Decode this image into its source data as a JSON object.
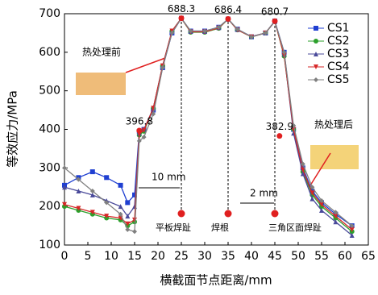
{
  "chart_data": {
    "type": "line",
    "xlabel": "横截面节点距离/mm",
    "ylabel": "等效应力/MPa",
    "xlim": [
      0,
      65
    ],
    "xticks": [
      0,
      5,
      10,
      15,
      20,
      25,
      30,
      35,
      40,
      45,
      50,
      55,
      60,
      65
    ],
    "ylim": [
      100,
      700
    ],
    "yticks": [
      100,
      200,
      300,
      400,
      500,
      600,
      700
    ],
    "x": [
      0,
      3,
      6,
      9,
      12,
      13.5,
      15,
      16,
      17,
      19,
      21,
      23,
      25,
      27,
      30,
      33,
      35,
      37,
      40,
      43,
      45,
      47,
      49,
      51,
      53,
      55,
      58,
      61.5
    ],
    "series": [
      {
        "name": "CS1",
        "color": "#1f3fd1",
        "marker": "square",
        "values": [
          255,
          275,
          290,
          275,
          255,
          210,
          230,
          395,
          400,
          450,
          560,
          650,
          688,
          655,
          655,
          665,
          686,
          660,
          640,
          650,
          681,
          600,
          400,
          300,
          240,
          210,
          180,
          150
        ]
      },
      {
        "name": "CS2",
        "color": "#2ca02c",
        "marker": "circle",
        "values": [
          200,
          190,
          180,
          170,
          165,
          150,
          160,
          385,
          395,
          455,
          565,
          655,
          688,
          652,
          652,
          662,
          686,
          658,
          640,
          650,
          680,
          590,
          400,
          290,
          230,
          200,
          170,
          135
        ]
      },
      {
        "name": "CS3",
        "color": "#4a4a9a",
        "marker": "triangle",
        "values": [
          250,
          240,
          230,
          215,
          200,
          175,
          200,
          390,
          400,
          455,
          565,
          655,
          688,
          654,
          654,
          664,
          686,
          659,
          641,
          650,
          680,
          595,
          390,
          285,
          220,
          190,
          160,
          125
        ]
      },
      {
        "name": "CS4",
        "color": "#d62728",
        "marker": "triangle-down",
        "values": [
          205,
          195,
          185,
          175,
          170,
          155,
          165,
          388,
          398,
          455,
          565,
          655,
          688,
          653,
          653,
          663,
          686,
          658,
          640,
          650,
          680,
          592,
          400,
          295,
          235,
          205,
          175,
          140
        ]
      },
      {
        "name": "CS5",
        "color": "#808080",
        "marker": "diamond",
        "values": [
          300,
          270,
          240,
          210,
          180,
          140,
          135,
          370,
          380,
          440,
          560,
          650,
          688,
          655,
          655,
          665,
          686,
          660,
          640,
          650,
          680,
          600,
          410,
          310,
          250,
          215,
          185,
          150
        ]
      }
    ],
    "peaks": [
      {
        "x": 25,
        "value": 688.3
      },
      {
        "x": 35,
        "value": 686.4
      },
      {
        "x": 45,
        "value": 680.7
      },
      {
        "x": 16,
        "value": 396.8
      },
      {
        "x": 46,
        "value": 382.9
      }
    ],
    "welds": [
      {
        "x": 25,
        "label": "平板焊趾"
      },
      {
        "x": 35,
        "label": "焊根"
      },
      {
        "x": 45,
        "label": "三角区面焊趾"
      }
    ],
    "notes": [
      "10 mm",
      "2 mm",
      "热处理前",
      "热处理后"
    ]
  }
}
